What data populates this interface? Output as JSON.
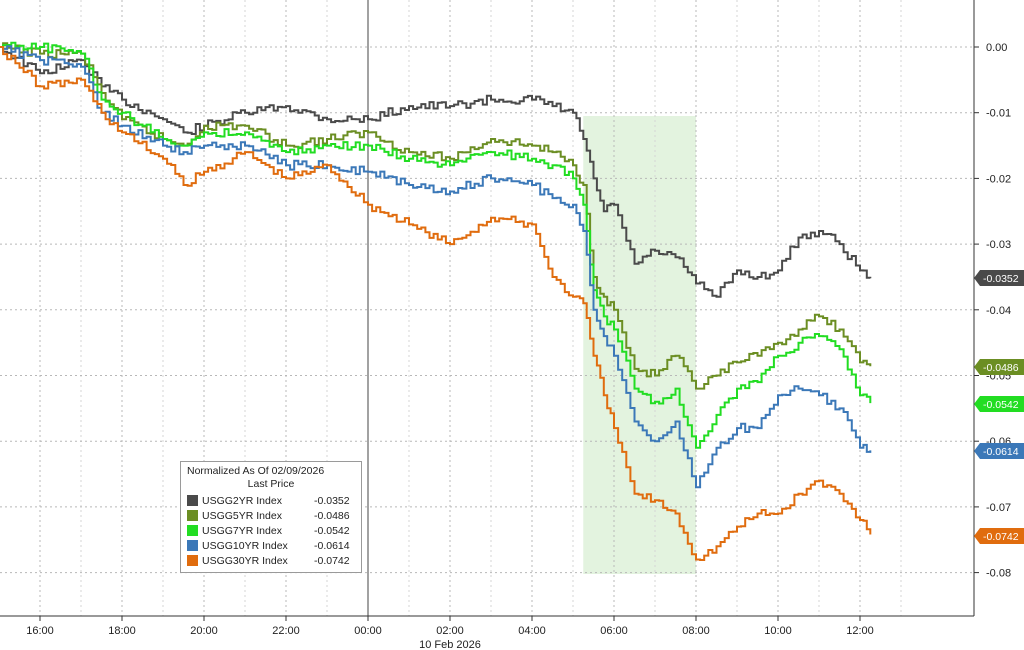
{
  "chart_data": {
    "type": "line",
    "x_date_label": "10 Feb 2026",
    "x_ticks": [
      "16:00",
      "18:00",
      "20:00",
      "22:00",
      "00:00",
      "02:00",
      "04:00",
      "06:00",
      "08:00",
      "10:00",
      "12:00"
    ],
    "y_ticks": [
      "0.00",
      "-0.01",
      "-0.02",
      "-0.03",
      "-0.04",
      "-0.05",
      "-0.06",
      "-0.07",
      "-0.08"
    ],
    "ylim": [
      -0.085,
      0.004
    ],
    "y_tick_values": [
      0.0,
      -0.01,
      -0.02,
      -0.03,
      -0.04,
      -0.05,
      -0.06,
      -0.07,
      -0.08
    ],
    "grid": true,
    "legend": {
      "title": "Normalized As Of 02/09/2026",
      "subtitle": "Last Price",
      "placement": "bottom-left"
    },
    "highlight": {
      "x_start": "05:15",
      "x_end": "08:00",
      "color": "#e3f3df"
    },
    "series": [
      {
        "name": "USGG2YR Index",
        "last": "-0.0352",
        "color": "#4a4a4a",
        "x": [
          "15:00",
          "16:00",
          "17:00",
          "17:30",
          "18:00",
          "19:00",
          "19:30",
          "20:00",
          "21:00",
          "22:00",
          "23:00",
          "00:00",
          "01:00",
          "02:00",
          "03:00",
          "04:00",
          "04:30",
          "05:00",
          "05:15",
          "05:30",
          "05:45",
          "06:00",
          "06:30",
          "07:00",
          "07:30",
          "08:00",
          "08:30",
          "09:00",
          "09:30",
          "10:00",
          "10:30",
          "11:00",
          "11:30",
          "12:00",
          "12:15"
        ],
        "values": [
          0.0,
          -0.004,
          -0.002,
          -0.006,
          -0.008,
          -0.011,
          -0.013,
          -0.012,
          -0.01,
          -0.009,
          -0.011,
          -0.011,
          -0.009,
          -0.009,
          -0.008,
          -0.008,
          -0.009,
          -0.01,
          -0.014,
          -0.02,
          -0.025,
          -0.024,
          -0.033,
          -0.031,
          -0.032,
          -0.036,
          -0.038,
          -0.034,
          -0.035,
          -0.034,
          -0.029,
          -0.028,
          -0.03,
          -0.034,
          -0.0352
        ]
      },
      {
        "name": "USGG5YR Index",
        "last": "-0.0486",
        "color": "#6b8e23",
        "x": [
          "15:00",
          "16:00",
          "17:00",
          "17:30",
          "18:00",
          "19:00",
          "19:30",
          "20:00",
          "21:00",
          "22:00",
          "23:00",
          "00:00",
          "01:00",
          "02:00",
          "03:00",
          "04:00",
          "04:30",
          "05:00",
          "05:15",
          "05:30",
          "05:45",
          "06:00",
          "06:30",
          "07:00",
          "07:30",
          "08:00",
          "08:30",
          "09:00",
          "09:30",
          "10:00",
          "10:30",
          "11:00",
          "11:30",
          "12:00",
          "12:15"
        ],
        "values": [
          0.0,
          -0.001,
          -0.001,
          -0.007,
          -0.011,
          -0.014,
          -0.015,
          -0.012,
          -0.012,
          -0.015,
          -0.014,
          -0.013,
          -0.016,
          -0.017,
          -0.014,
          -0.015,
          -0.016,
          -0.018,
          -0.021,
          -0.035,
          -0.038,
          -0.04,
          -0.049,
          -0.05,
          -0.047,
          -0.052,
          -0.05,
          -0.048,
          -0.047,
          -0.045,
          -0.043,
          -0.041,
          -0.043,
          -0.048,
          -0.0486
        ]
      },
      {
        "name": "USGG7YR Index",
        "last": "-0.0542",
        "color": "#22dd22",
        "x": [
          "15:00",
          "16:00",
          "17:00",
          "17:30",
          "18:00",
          "19:00",
          "19:30",
          "20:00",
          "21:00",
          "22:00",
          "23:00",
          "00:00",
          "01:00",
          "02:00",
          "03:00",
          "04:00",
          "04:30",
          "05:00",
          "05:15",
          "05:30",
          "05:45",
          "06:00",
          "06:30",
          "07:00",
          "07:30",
          "08:00",
          "08:30",
          "09:00",
          "09:30",
          "10:00",
          "10:30",
          "11:00",
          "11:30",
          "12:00",
          "12:15"
        ],
        "values": [
          0.0,
          0.0,
          -0.001,
          -0.008,
          -0.01,
          -0.014,
          -0.015,
          -0.013,
          -0.013,
          -0.016,
          -0.015,
          -0.015,
          -0.017,
          -0.018,
          -0.016,
          -0.017,
          -0.018,
          -0.02,
          -0.024,
          -0.037,
          -0.041,
          -0.043,
          -0.052,
          -0.054,
          -0.052,
          -0.061,
          -0.056,
          -0.052,
          -0.051,
          -0.047,
          -0.045,
          -0.044,
          -0.046,
          -0.053,
          -0.0542
        ]
      },
      {
        "name": "USGG10YR Index",
        "last": "-0.0614",
        "color": "#3b78b8",
        "x": [
          "15:00",
          "16:00",
          "17:00",
          "17:30",
          "18:00",
          "19:00",
          "19:30",
          "20:00",
          "21:00",
          "22:00",
          "23:00",
          "00:00",
          "01:00",
          "02:00",
          "03:00",
          "04:00",
          "04:30",
          "05:00",
          "05:15",
          "05:30",
          "05:45",
          "06:00",
          "06:30",
          "07:00",
          "07:30",
          "08:00",
          "08:30",
          "09:00",
          "09:30",
          "10:00",
          "10:30",
          "11:00",
          "11:30",
          "12:00",
          "12:15"
        ],
        "values": [
          0.0,
          -0.002,
          -0.003,
          -0.01,
          -0.012,
          -0.015,
          -0.016,
          -0.015,
          -0.015,
          -0.018,
          -0.018,
          -0.019,
          -0.021,
          -0.022,
          -0.02,
          -0.021,
          -0.023,
          -0.024,
          -0.028,
          -0.04,
          -0.044,
          -0.047,
          -0.057,
          -0.06,
          -0.057,
          -0.067,
          -0.061,
          -0.058,
          -0.058,
          -0.053,
          -0.052,
          -0.053,
          -0.055,
          -0.061,
          -0.0614
        ]
      },
      {
        "name": "USGG30YR Index",
        "last": "-0.0742",
        "color": "#e06c0e",
        "x": [
          "15:00",
          "16:00",
          "17:00",
          "17:30",
          "18:00",
          "19:00",
          "19:30",
          "20:00",
          "21:00",
          "22:00",
          "23:00",
          "00:00",
          "01:00",
          "02:00",
          "03:00",
          "04:00",
          "04:30",
          "05:00",
          "05:15",
          "05:30",
          "05:45",
          "06:00",
          "06:30",
          "07:00",
          "07:30",
          "08:00",
          "08:30",
          "09:00",
          "09:30",
          "10:00",
          "10:30",
          "11:00",
          "11:30",
          "12:00",
          "12:15"
        ],
        "values": [
          0.0,
          -0.006,
          -0.005,
          -0.01,
          -0.013,
          -0.017,
          -0.021,
          -0.019,
          -0.016,
          -0.02,
          -0.018,
          -0.024,
          -0.027,
          -0.03,
          -0.026,
          -0.027,
          -0.035,
          -0.038,
          -0.039,
          -0.047,
          -0.053,
          -0.058,
          -0.068,
          -0.069,
          -0.071,
          -0.078,
          -0.076,
          -0.073,
          -0.071,
          -0.071,
          -0.068,
          -0.066,
          -0.068,
          -0.072,
          -0.0742
        ]
      }
    ]
  }
}
